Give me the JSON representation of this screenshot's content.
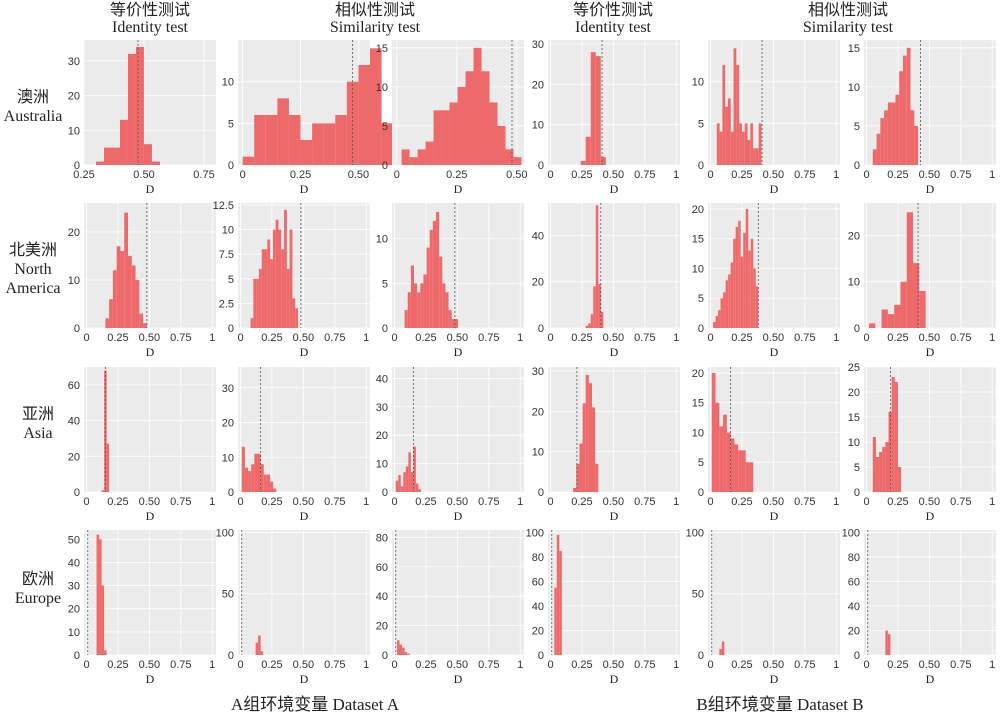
{
  "headers": {
    "a_identity": {
      "zh": "等价性测试",
      "en": "Identity test"
    },
    "a_similarity": {
      "zh": "相似性测试",
      "en": "Similarity test"
    },
    "b_identity": {
      "zh": "等价性测试",
      "en": "Identity test"
    },
    "b_similarity": {
      "zh": "相似性测试",
      "en": "Similarity test"
    }
  },
  "rows": [
    {
      "zh": "澳洲",
      "en": "Australia"
    },
    {
      "zh": "北美洲",
      "en": "North America"
    },
    {
      "zh": "亚洲",
      "en": "Asia"
    },
    {
      "zh": "欧洲",
      "en": "Europe"
    }
  ],
  "dataset_labels": {
    "a": "A组环境变量 Dataset A",
    "b": "B组环境变量 Dataset B"
  },
  "colors": {
    "bar": "#ee6a6a",
    "panel_bg": "#ebebeb",
    "grid": "#ffffff",
    "ref_line": "#555555"
  },
  "chart_data": [
    {
      "type": "bar",
      "panel": "australia-a-identity",
      "xlabel": "D",
      "xlim": [
        0.25,
        0.8
      ],
      "ylim": [
        0,
        36
      ],
      "xticks": [
        0.25,
        0.5,
        0.75
      ],
      "yticks": [
        0,
        10,
        20,
        30
      ],
      "bin_start": 0.3,
      "bin_width": 0.0333,
      "values": [
        1,
        5,
        5,
        13,
        32,
        34,
        6,
        1
      ],
      "ref_x": 0.475
    },
    {
      "type": "bar",
      "panel": "australia-a-similarity-1",
      "xlabel": "D",
      "xlim": [
        -0.02,
        0.55
      ],
      "ylim": [
        0,
        15
      ],
      "xticks": [
        0,
        0.25,
        0.5
      ],
      "yticks": [
        0,
        5,
        10
      ],
      "bin_start": 0,
      "bin_width": 0.05,
      "values": [
        1,
        6,
        6,
        8,
        6,
        3,
        5,
        5,
        6,
        10,
        12,
        14,
        5
      ],
      "ref_x": 0.475
    },
    {
      "type": "bar",
      "panel": "australia-a-similarity-2",
      "xlabel": "D",
      "xlim": [
        -0.02,
        0.53
      ],
      "ylim": [
        0,
        16
      ],
      "xticks": [
        0,
        0.25,
        0.5
      ],
      "yticks": [
        0,
        5,
        10,
        15
      ],
      "bin_start": 0.02,
      "bin_width": 0.0333,
      "values": [
        2,
        1,
        2,
        3,
        7,
        7,
        8,
        10,
        12,
        15,
        12,
        8,
        5,
        2,
        1
      ],
      "ref_x": 0.48
    },
    {
      "type": "bar",
      "panel": "australia-b-identity",
      "xlabel": "D",
      "xlim": [
        -0.02,
        1.03
      ],
      "ylim": [
        0,
        31
      ],
      "xticks": [
        0,
        0.25,
        0.5,
        0.75,
        1
      ],
      "yticks": [
        0,
        10,
        20,
        30
      ],
      "bin_start": 0.24,
      "bin_width": 0.04,
      "values": [
        1,
        7,
        28,
        27,
        2
      ],
      "ref_x": 0.41
    },
    {
      "type": "bar",
      "panel": "australia-b-similarity-1",
      "xlabel": "D",
      "xlim": [
        -0.02,
        1.03
      ],
      "ylim": [
        0,
        15
      ],
      "xticks": [
        0,
        0.25,
        0.5,
        0.75,
        1
      ],
      "yticks": [
        0,
        5,
        10
      ],
      "bin_start": 0.05,
      "bin_width": 0.0222,
      "values": [
        5,
        4,
        12,
        7,
        8,
        4,
        14,
        12,
        5,
        4,
        5,
        3,
        5,
        2,
        2,
        5
      ],
      "ref_x": 0.41
    },
    {
      "type": "bar",
      "panel": "australia-b-similarity-2",
      "xlabel": "D",
      "xlim": [
        -0.02,
        1.03
      ],
      "ylim": [
        0,
        16
      ],
      "xticks": [
        0,
        0.25,
        0.5,
        0.75,
        1
      ],
      "yticks": [
        0,
        5,
        10,
        15
      ],
      "bin_start": 0.05,
      "bin_width": 0.03,
      "values": [
        2,
        4,
        6,
        7,
        8,
        8,
        9,
        12,
        14,
        15,
        7,
        5
      ],
      "ref_x": 0.43
    },
    {
      "type": "bar",
      "panel": "north-america-a-identity",
      "xlabel": "D",
      "xlim": [
        -0.02,
        1.03
      ],
      "ylim": [
        0,
        26
      ],
      "xticks": [
        0,
        0.25,
        0.5,
        0.75,
        1
      ],
      "yticks": [
        0,
        10,
        20
      ],
      "bin_start": 0.15,
      "bin_width": 0.03,
      "values": [
        2,
        6,
        12,
        17,
        16,
        24,
        15,
        13,
        10,
        3,
        1
      ],
      "ref_x": 0.48
    },
    {
      "type": "bar",
      "panel": "north-america-a-similarity-1",
      "xlabel": "D",
      "xlim": [
        -0.02,
        1.03
      ],
      "ylim": [
        0,
        12.7
      ],
      "xticks": [
        0,
        0.25,
        0.5,
        0.75,
        1
      ],
      "yticks": [
        0,
        2.5,
        5.0,
        7.5,
        10.0,
        12.5
      ],
      "bin_start": 0.08,
      "bin_width": 0.0222,
      "values": [
        1,
        5,
        5,
        6,
        8,
        8,
        9,
        7,
        10,
        11,
        10,
        8,
        12,
        6,
        10,
        3,
        2
      ],
      "ref_x": 0.48
    },
    {
      "type": "bar",
      "panel": "north-america-a-similarity-2",
      "xlabel": "D",
      "xlim": [
        -0.02,
        1.03
      ],
      "ylim": [
        0,
        14
      ],
      "xticks": [
        0,
        0.25,
        0.5,
        0.75,
        1
      ],
      "yticks": [
        0,
        5,
        10
      ],
      "bin_start": 0.08,
      "bin_width": 0.025,
      "values": [
        2,
        4,
        7,
        5,
        4,
        5,
        6,
        9,
        11,
        12,
        13,
        8,
        5,
        4,
        2,
        1,
        1
      ],
      "ref_x": 0.48
    },
    {
      "type": "bar",
      "panel": "north-america-b-identity",
      "xlabel": "D",
      "xlim": [
        -0.02,
        1.03
      ],
      "ylim": [
        0,
        54
      ],
      "xticks": [
        0,
        0.25,
        0.5,
        0.75,
        1
      ],
      "yticks": [
        0,
        20,
        40
      ],
      "bin_start": 0.28,
      "bin_width": 0.02,
      "values": [
        1,
        2,
        6,
        18,
        53,
        19,
        7
      ],
      "ref_x": 0.4
    },
    {
      "type": "bar",
      "panel": "north-america-b-similarity-1",
      "xlabel": "D",
      "xlim": [
        -0.02,
        1.03
      ],
      "ylim": [
        0,
        21
      ],
      "xticks": [
        0,
        0.25,
        0.5,
        0.75,
        1
      ],
      "yticks": [
        0,
        5,
        10,
        15,
        20
      ],
      "bin_start": 0.02,
      "bin_width": 0.02,
      "values": [
        1,
        2,
        3,
        5,
        6,
        8,
        9,
        11,
        15,
        17,
        18,
        12,
        16,
        20,
        13,
        15,
        10,
        7
      ],
      "ref_x": 0.38
    },
    {
      "type": "bar",
      "panel": "north-america-b-similarity-2",
      "xlabel": "D",
      "xlim": [
        -0.02,
        1.03
      ],
      "ylim": [
        0,
        27
      ],
      "xticks": [
        0,
        0.25,
        0.5,
        0.75,
        1
      ],
      "yticks": [
        0,
        10,
        20
      ],
      "bin_start": 0.02,
      "bin_width": 0.05,
      "values": [
        1,
        0,
        4,
        3,
        5,
        10,
        25,
        14,
        8
      ],
      "ref_x": 0.41
    },
    {
      "type": "bar",
      "panel": "asia-a-identity",
      "xlabel": "D",
      "xlim": [
        -0.02,
        1.03
      ],
      "ylim": [
        0,
        70
      ],
      "xticks": [
        0,
        0.25,
        0.5,
        0.75,
        1
      ],
      "yticks": [
        0,
        20,
        40,
        60
      ],
      "bin_start": 0.12,
      "bin_width": 0.02,
      "values": [
        1,
        68,
        27
      ],
      "ref_x": 0.15
    },
    {
      "type": "bar",
      "panel": "asia-a-similarity-1",
      "xlabel": "D",
      "xlim": [
        -0.02,
        1.03
      ],
      "ylim": [
        0,
        36
      ],
      "xticks": [
        0,
        0.25,
        0.5,
        0.75,
        1
      ],
      "yticks": [
        0,
        10,
        20,
        30
      ],
      "bin_start": 0.01,
      "bin_width": 0.025,
      "values": [
        13,
        7,
        6,
        8,
        11,
        11,
        8,
        5,
        5,
        3,
        1
      ],
      "ref_x": 0.16
    },
    {
      "type": "bar",
      "panel": "asia-a-similarity-2",
      "xlabel": "D",
      "xlim": [
        -0.02,
        1.03
      ],
      "ylim": [
        0,
        44
      ],
      "xticks": [
        0,
        0.25,
        0.5,
        0.75,
        1
      ],
      "yticks": [
        0,
        10,
        20,
        30,
        40
      ],
      "bin_start": 0.01,
      "bin_width": 0.02,
      "values": [
        4,
        6,
        2,
        7,
        9,
        14,
        7,
        16,
        3,
        1
      ],
      "ref_x": 0.15
    },
    {
      "type": "bar",
      "panel": "asia-b-identity",
      "xlabel": "D",
      "xlim": [
        -0.02,
        1.03
      ],
      "ylim": [
        0,
        31
      ],
      "xticks": [
        0,
        0.25,
        0.5,
        0.75,
        1
      ],
      "yticks": [
        0,
        10,
        20,
        30
      ],
      "bin_start": 0.18,
      "bin_width": 0.025,
      "values": [
        1,
        7,
        12,
        22,
        29,
        27,
        21,
        7
      ],
      "ref_x": 0.21
    },
    {
      "type": "bar",
      "panel": "asia-b-similarity-1",
      "xlabel": "D",
      "xlim": [
        -0.02,
        1.03
      ],
      "ylim": [
        0,
        21
      ],
      "xticks": [
        0,
        0.25,
        0.5,
        0.75,
        1
      ],
      "yticks": [
        0,
        5,
        10,
        15,
        20
      ],
      "bin_start": 0.01,
      "bin_width": 0.03,
      "values": [
        20,
        15,
        11,
        13,
        10,
        9,
        8,
        7,
        7,
        5,
        5
      ],
      "ref_x": 0.16
    },
    {
      "type": "bar",
      "panel": "asia-b-similarity-2",
      "xlabel": "D",
      "xlim": [
        -0.02,
        1.03
      ],
      "ylim": [
        0,
        25
      ],
      "xticks": [
        0,
        0.25,
        0.5,
        0.75,
        1
      ],
      "yticks": [
        0,
        5,
        10,
        15,
        20,
        25
      ],
      "bin_start": 0.05,
      "bin_width": 0.025,
      "values": [
        11,
        7,
        8,
        9,
        10,
        16,
        23,
        22,
        5
      ],
      "ref_x": 0.19
    },
    {
      "type": "bar",
      "panel": "europe-a-identity",
      "xlabel": "D",
      "xlim": [
        -0.02,
        1.03
      ],
      "ylim": [
        0,
        54
      ],
      "xticks": [
        0,
        0.25,
        0.5,
        0.75,
        1
      ],
      "yticks": [
        0,
        10,
        20,
        30,
        40,
        50
      ],
      "bin_start": 0.08,
      "bin_width": 0.02,
      "values": [
        52,
        50,
        30,
        2
      ],
      "ref_x": 0.01
    },
    {
      "type": "bar",
      "panel": "europe-a-similarity-1",
      "xlabel": "D",
      "xlim": [
        -0.02,
        1.03
      ],
      "ylim": [
        0,
        102
      ],
      "xticks": [
        0,
        0.25,
        0.5,
        0.75,
        1
      ],
      "yticks": [
        0,
        50,
        100
      ],
      "bin_start": 0.12,
      "bin_width": 0.02,
      "values": [
        10,
        16,
        3
      ],
      "ref_x": 0.01
    },
    {
      "type": "bar",
      "panel": "europe-a-similarity-2",
      "xlabel": "D",
      "xlim": [
        -0.02,
        1.03
      ],
      "ylim": [
        0,
        85
      ],
      "xticks": [
        0,
        0.25,
        0.5,
        0.75,
        1
      ],
      "yticks": [
        0,
        20,
        40,
        60,
        80
      ],
      "bin_start": 0.02,
      "bin_width": 0.02,
      "values": [
        10,
        7,
        5,
        2,
        1
      ],
      "ref_x": 0.01
    },
    {
      "type": "bar",
      "panel": "europe-b-identity",
      "xlabel": "D",
      "xlim": [
        -0.02,
        1.03
      ],
      "ylim": [
        0,
        102
      ],
      "xticks": [
        0,
        0.25,
        0.5,
        0.75,
        1
      ],
      "yticks": [
        0,
        20,
        40,
        60,
        80,
        100
      ],
      "bin_start": 0.03,
      "bin_width": 0.02,
      "values": [
        55,
        98,
        85
      ],
      "ref_x": 0.01
    },
    {
      "type": "bar",
      "panel": "europe-b-similarity-1",
      "xlabel": "D",
      "xlim": [
        -0.02,
        1.03
      ],
      "ylim": [
        0,
        102
      ],
      "xticks": [
        0,
        0.25,
        0.5,
        0.75,
        1
      ],
      "yticks": [
        0,
        50,
        100
      ],
      "bin_start": 0.07,
      "bin_width": 0.02,
      "values": [
        5,
        11
      ],
      "ref_x": 0.01
    },
    {
      "type": "bar",
      "panel": "europe-b-similarity-2",
      "xlabel": "D",
      "xlim": [
        -0.02,
        1.03
      ],
      "ylim": [
        0,
        102
      ],
      "xticks": [
        0,
        0.25,
        0.5,
        0.75,
        1
      ],
      "yticks": [
        0,
        20,
        40,
        60,
        80,
        100
      ],
      "bin_start": 0.15,
      "bin_width": 0.02,
      "values": [
        20,
        17
      ],
      "ref_x": 0.01
    }
  ]
}
